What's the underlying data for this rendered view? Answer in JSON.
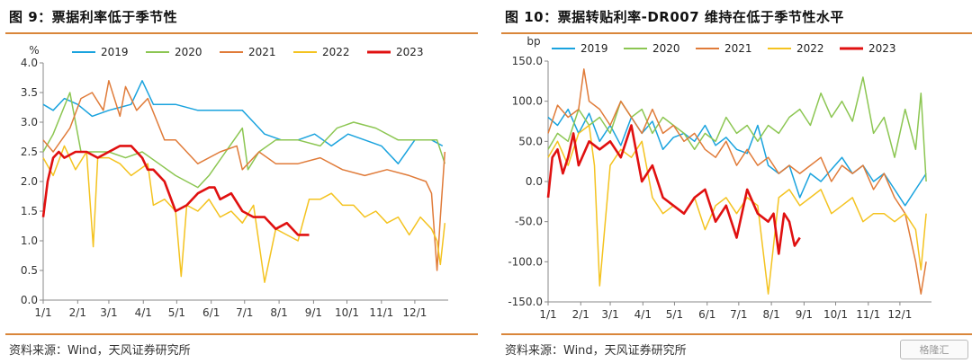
{
  "colors": {
    "2019": "#1aa3de",
    "2020": "#8cc652",
    "2021": "#e07b39",
    "2022": "#f4c320",
    "2023": "#e01010",
    "rule": "#d9863a"
  },
  "left": {
    "title": "图 9：票据利率低于季节性",
    "source": "资料来源：Wind，天风证券研究所",
    "chart_data": {
      "type": "line",
      "unit": "%",
      "ylim": [
        0.0,
        4.0
      ],
      "yticks": [
        "4.0",
        "3.5",
        "3.0",
        "2.5",
        "2.0",
        "1.5",
        "1.0",
        "0.5",
        "0.0"
      ],
      "xticks": [
        "1/1",
        "2/1",
        "3/1",
        "4/1",
        "5/1",
        "6/1",
        "7/1",
        "8/1",
        "9/1",
        "10/1",
        "11/1",
        "12/1"
      ],
      "legend": [
        "2019",
        "2020",
        "2021",
        "2022",
        "2023"
      ],
      "series": [
        {
          "name": "2019",
          "x": [
            1,
            10,
            20,
            32,
            45,
            60,
            80,
            90,
            100,
            120,
            140,
            160,
            180,
            190,
            200,
            215,
            230,
            245,
            260,
            275,
            290,
            305,
            320,
            335,
            350,
            360
          ],
          "y": [
            3.3,
            3.2,
            3.4,
            3.3,
            3.1,
            3.2,
            3.3,
            3.7,
            3.3,
            3.3,
            3.2,
            3.2,
            3.2,
            3.0,
            2.8,
            2.7,
            2.7,
            2.8,
            2.6,
            2.8,
            2.7,
            2.6,
            2.3,
            2.7,
            2.7,
            2.6
          ]
        },
        {
          "name": "2020",
          "x": [
            1,
            10,
            25,
            35,
            45,
            60,
            75,
            90,
            105,
            120,
            140,
            150,
            165,
            180,
            185,
            195,
            210,
            230,
            250,
            265,
            280,
            300,
            320,
            340,
            355,
            362
          ],
          "y": [
            2.5,
            2.8,
            3.5,
            2.5,
            2.5,
            2.5,
            2.4,
            2.5,
            2.3,
            2.1,
            1.9,
            2.1,
            2.5,
            2.9,
            2.2,
            2.5,
            2.7,
            2.7,
            2.6,
            2.9,
            3.0,
            2.9,
            2.7,
            2.7,
            2.7,
            2.3
          ]
        },
        {
          "name": "2021",
          "x": [
            1,
            10,
            25,
            35,
            45,
            55,
            60,
            70,
            75,
            85,
            95,
            110,
            120,
            140,
            160,
            175,
            180,
            195,
            210,
            230,
            250,
            270,
            290,
            310,
            330,
            345,
            350,
            355,
            358,
            362
          ],
          "y": [
            2.7,
            2.5,
            2.9,
            3.4,
            3.5,
            3.2,
            3.7,
            3.1,
            3.6,
            3.2,
            3.4,
            2.7,
            2.7,
            2.3,
            2.5,
            2.6,
            2.2,
            2.5,
            2.3,
            2.3,
            2.4,
            2.2,
            2.1,
            2.2,
            2.1,
            2.0,
            1.8,
            0.5,
            1.4,
            2.5
          ]
        },
        {
          "name": "2022",
          "x": [
            1,
            10,
            20,
            30,
            40,
            46,
            50,
            60,
            70,
            80,
            95,
            100,
            110,
            120,
            125,
            130,
            140,
            150,
            160,
            170,
            180,
            190,
            200,
            210,
            220,
            230,
            240,
            250,
            260,
            270,
            280,
            290,
            300,
            310,
            320,
            330,
            340,
            350,
            355,
            358,
            362
          ],
          "y": [
            2.4,
            2.1,
            2.6,
            2.2,
            2.5,
            0.9,
            2.4,
            2.4,
            2.3,
            2.1,
            2.3,
            1.6,
            1.7,
            1.5,
            0.4,
            1.6,
            1.5,
            1.7,
            1.4,
            1.5,
            1.3,
            1.6,
            0.3,
            1.2,
            1.1,
            1.0,
            1.7,
            1.7,
            1.8,
            1.6,
            1.6,
            1.4,
            1.5,
            1.3,
            1.4,
            1.1,
            1.4,
            1.2,
            1.0,
            0.6,
            1.3
          ]
        },
        {
          "name": "2023",
          "x": [
            1,
            5,
            10,
            15,
            20,
            30,
            40,
            50,
            60,
            70,
            80,
            90,
            95,
            100,
            110,
            120,
            130,
            140,
            150,
            155,
            160,
            170,
            180,
            190,
            200,
            210,
            220,
            230,
            235,
            240
          ],
          "y": [
            1.4,
            2.0,
            2.4,
            2.5,
            2.4,
            2.5,
            2.5,
            2.4,
            2.5,
            2.6,
            2.6,
            2.4,
            2.2,
            2.2,
            2.0,
            1.5,
            1.6,
            1.8,
            1.9,
            1.9,
            1.7,
            1.8,
            1.5,
            1.4,
            1.4,
            1.2,
            1.3,
            1.1,
            1.1,
            1.1
          ]
        }
      ]
    }
  },
  "right": {
    "title": "图 10：票据转贴利率-DR007 维持在低于季节性水平",
    "source": "资料来源：Wind，天风证券研究所",
    "watermark": "格隆汇",
    "chart_data": {
      "type": "line",
      "unit": "bp",
      "ylim": [
        -150.0,
        150.0
      ],
      "yticks": [
        "150.0",
        "100.0",
        "50.0",
        "0.0",
        "-50.0",
        "-100.0",
        "-150.0"
      ],
      "xticks": [
        "1/1",
        "2/1",
        "3/1",
        "4/1",
        "5/1",
        "6/1",
        "7/1",
        "8/1",
        "9/1",
        "10/1",
        "11/1",
        "12/1"
      ],
      "legend": [
        "2019",
        "2020",
        "2021",
        "2022",
        "2023"
      ],
      "series": [
        {
          "name": "2019",
          "x": [
            1,
            10,
            20,
            30,
            40,
            50,
            60,
            70,
            80,
            90,
            100,
            110,
            120,
            130,
            140,
            150,
            160,
            170,
            180,
            190,
            200,
            210,
            220,
            230,
            240,
            250,
            260,
            270,
            280,
            290,
            300,
            310,
            320,
            330,
            340,
            350,
            360
          ],
          "y": [
            80,
            70,
            90,
            60,
            85,
            50,
            70,
            45,
            80,
            60,
            75,
            40,
            55,
            60,
            50,
            70,
            45,
            55,
            40,
            35,
            70,
            20,
            10,
            20,
            -20,
            10,
            0,
            15,
            30,
            10,
            20,
            0,
            10,
            -10,
            -30,
            -10,
            10
          ]
        },
        {
          "name": "2020",
          "x": [
            1,
            10,
            20,
            30,
            40,
            50,
            60,
            70,
            80,
            90,
            100,
            110,
            120,
            130,
            140,
            150,
            160,
            170,
            180,
            190,
            200,
            210,
            220,
            230,
            240,
            250,
            260,
            270,
            280,
            290,
            300,
            310,
            320,
            330,
            340,
            350,
            355,
            360
          ],
          "y": [
            40,
            60,
            50,
            90,
            70,
            80,
            60,
            100,
            80,
            90,
            60,
            80,
            70,
            60,
            40,
            60,
            50,
            80,
            60,
            70,
            50,
            70,
            60,
            80,
            90,
            70,
            110,
            80,
            100,
            75,
            130,
            60,
            80,
            30,
            90,
            40,
            110,
            0
          ]
        },
        {
          "name": "2021",
          "x": [
            1,
            10,
            20,
            30,
            35,
            40,
            50,
            60,
            70,
            80,
            90,
            100,
            110,
            120,
            130,
            140,
            150,
            160,
            170,
            180,
            190,
            200,
            210,
            220,
            230,
            240,
            250,
            260,
            270,
            280,
            290,
            300,
            310,
            320,
            330,
            340,
            350,
            355,
            360
          ],
          "y": [
            60,
            95,
            80,
            90,
            140,
            100,
            90,
            70,
            100,
            80,
            60,
            90,
            60,
            70,
            50,
            60,
            40,
            30,
            50,
            20,
            40,
            20,
            30,
            10,
            20,
            10,
            20,
            30,
            0,
            20,
            10,
            20,
            -10,
            10,
            -20,
            -40,
            -100,
            -140,
            -100
          ]
        },
        {
          "name": "2022",
          "x": [
            1,
            10,
            20,
            30,
            40,
            45,
            50,
            60,
            70,
            80,
            90,
            100,
            110,
            120,
            130,
            140,
            150,
            160,
            170,
            180,
            190,
            200,
            210,
            220,
            230,
            240,
            250,
            260,
            270,
            280,
            290,
            300,
            310,
            320,
            330,
            340,
            350,
            355,
            360
          ],
          "y": [
            30,
            50,
            20,
            60,
            70,
            20,
            -130,
            20,
            40,
            30,
            50,
            -20,
            -40,
            -30,
            -40,
            -20,
            -60,
            -30,
            -20,
            -40,
            -20,
            -30,
            -140,
            -20,
            -10,
            -30,
            -20,
            -10,
            -40,
            -30,
            -20,
            -50,
            -40,
            -40,
            -50,
            -40,
            -60,
            -110,
            -40
          ]
        },
        {
          "name": "2023",
          "x": [
            1,
            5,
            10,
            15,
            20,
            25,
            30,
            40,
            50,
            60,
            70,
            80,
            90,
            100,
            110,
            120,
            130,
            140,
            150,
            160,
            170,
            180,
            190,
            200,
            210,
            215,
            220,
            225,
            230,
            235,
            240
          ],
          "y": [
            -20,
            30,
            40,
            10,
            30,
            60,
            20,
            50,
            40,
            50,
            30,
            70,
            0,
            20,
            -20,
            -30,
            -40,
            -20,
            -10,
            -50,
            -30,
            -70,
            -10,
            -40,
            -50,
            -40,
            -90,
            -40,
            -50,
            -80,
            -70
          ]
        }
      ]
    }
  }
}
